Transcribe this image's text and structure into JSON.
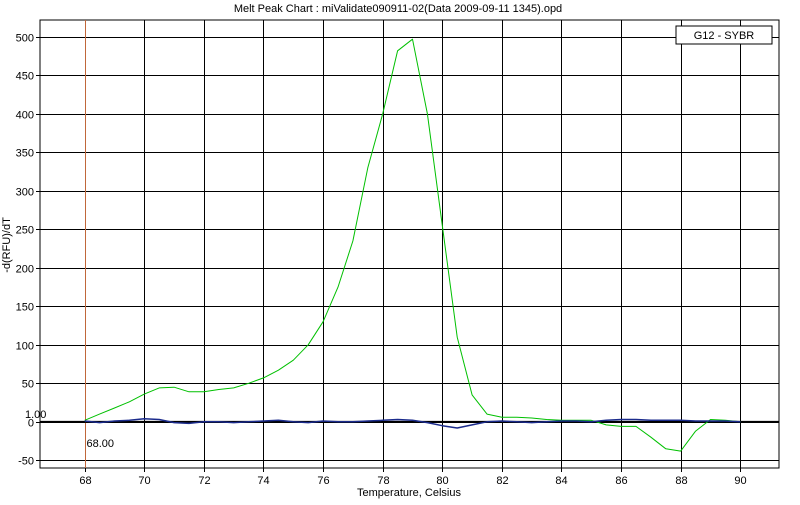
{
  "chart_data": {
    "type": "line",
    "title": "Melt Peak Chart : miValidate090911-02(Data 2009-09-11 1345).opd",
    "xlabel": "Temperature, Celsius",
    "ylabel": "-d(RFU)/dT",
    "xlim": [
      66.5,
      91.3
    ],
    "ylim": [
      -60,
      522
    ],
    "xticks": [
      68,
      70,
      72,
      74,
      76,
      78,
      80,
      82,
      84,
      86,
      88,
      90
    ],
    "yticks": [
      -50,
      0,
      50,
      100,
      150,
      200,
      250,
      300,
      350,
      400,
      450,
      500
    ],
    "grid": true,
    "legend": {
      "position": "top-right",
      "label": "G12 - SYBR"
    },
    "marker": {
      "x": 68,
      "y_label": "1.00",
      "x_label": "68.00",
      "color": "#c0673a"
    },
    "threshold": {
      "y": 0,
      "color": "#000000"
    },
    "series": [
      {
        "color": "#00c000",
        "x": [
          68,
          68.5,
          69,
          69.5,
          70,
          70.5,
          71,
          71.5,
          72,
          72.5,
          73,
          73.5,
          74,
          74.5,
          75,
          75.5,
          76,
          76.5,
          77,
          77.5,
          78,
          78.5,
          79,
          79.5,
          80,
          80.5,
          81,
          81.5,
          82,
          82.5,
          83,
          83.5,
          84,
          84.5,
          85,
          85.5,
          86,
          86.5,
          87,
          87.5,
          88,
          88.5,
          89,
          89.5,
          90
        ],
        "y": [
          2,
          10,
          18,
          26,
          36,
          44,
          45,
          39,
          39,
          42,
          44,
          50,
          57,
          67,
          80,
          100,
          130,
          175,
          235,
          330,
          400,
          482,
          497,
          400,
          255,
          110,
          35,
          10,
          6,
          6,
          5,
          3,
          2,
          2,
          2,
          -4,
          -6,
          -6,
          -20,
          -35,
          -38,
          -12,
          3,
          2,
          0
        ]
      },
      {
        "color": "#1b2b8c",
        "x": [
          68,
          68.5,
          69,
          69.5,
          70,
          70.5,
          71,
          71.5,
          72,
          72.5,
          73,
          73.5,
          74,
          74.5,
          75,
          75.5,
          76,
          76.5,
          77,
          77.5,
          78,
          78.5,
          79,
          79.5,
          80,
          80.5,
          81,
          81.5,
          82,
          82.5,
          83,
          83.5,
          84,
          84.5,
          85,
          85.5,
          86,
          86.5,
          87,
          87.5,
          88,
          88.5,
          89,
          89.5,
          90
        ],
        "y": [
          1,
          -1,
          1,
          2,
          4,
          3,
          -1,
          -2,
          0,
          0,
          -1,
          0,
          1,
          2,
          0,
          -1,
          1,
          0,
          0,
          1,
          2,
          3,
          2,
          -1,
          -5,
          -8,
          -4,
          0,
          1,
          0,
          -1,
          0,
          1,
          1,
          0,
          2,
          3,
          3,
          2,
          2,
          2,
          1,
          1,
          1,
          0
        ]
      }
    ]
  }
}
